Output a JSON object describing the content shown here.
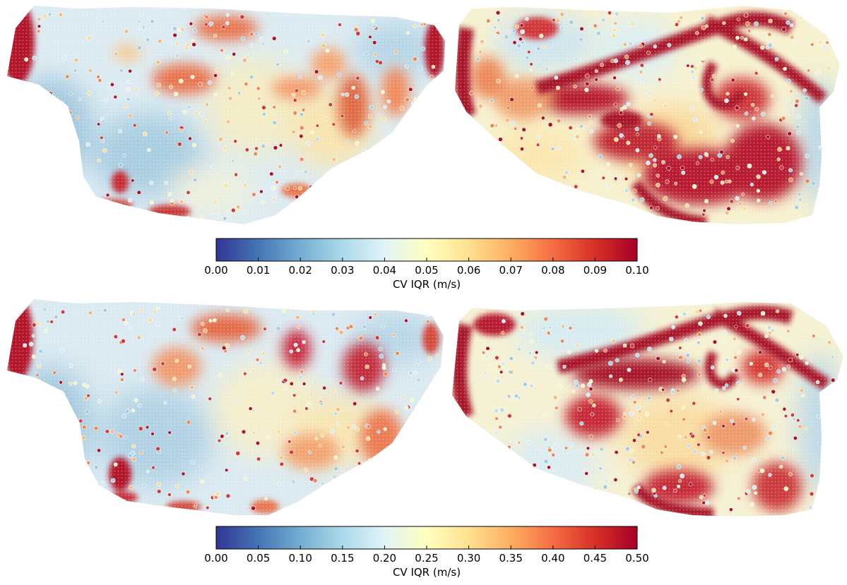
{
  "figure": {
    "panels": [
      {
        "name": "row-1-left-map"
      },
      {
        "name": "row-1-right-map"
      },
      {
        "name": "row-2-left-map"
      },
      {
        "name": "row-2-right-map"
      }
    ]
  },
  "colorbars": [
    {
      "label": "CV IQR (m/s)",
      "range": [
        0.0,
        0.1
      ],
      "ticks": [
        "0.00",
        "0.01",
        "0.02",
        "0.03",
        "0.04",
        "0.05",
        "0.06",
        "0.07",
        "0.08",
        "0.09",
        "0.10"
      ],
      "colormap": [
        "#313695",
        "#4575b4",
        "#74add1",
        "#abd9e9",
        "#e0f3f8",
        "#ffffbf",
        "#fee090",
        "#fdae61",
        "#f46d43",
        "#d73027",
        "#a50026"
      ]
    },
    {
      "label": "CV IQR (m/s)",
      "range": [
        0.0,
        0.5
      ],
      "ticks": [
        "0.00",
        "0.05",
        "0.10",
        "0.15",
        "0.20",
        "0.25",
        "0.30",
        "0.35",
        "0.40",
        "0.45",
        "0.50"
      ],
      "colormap": [
        "#313695",
        "#4575b4",
        "#74add1",
        "#abd9e9",
        "#e0f3f8",
        "#ffffbf",
        "#fee090",
        "#fdae61",
        "#f46d43",
        "#d73027",
        "#a50026"
      ]
    }
  ]
}
